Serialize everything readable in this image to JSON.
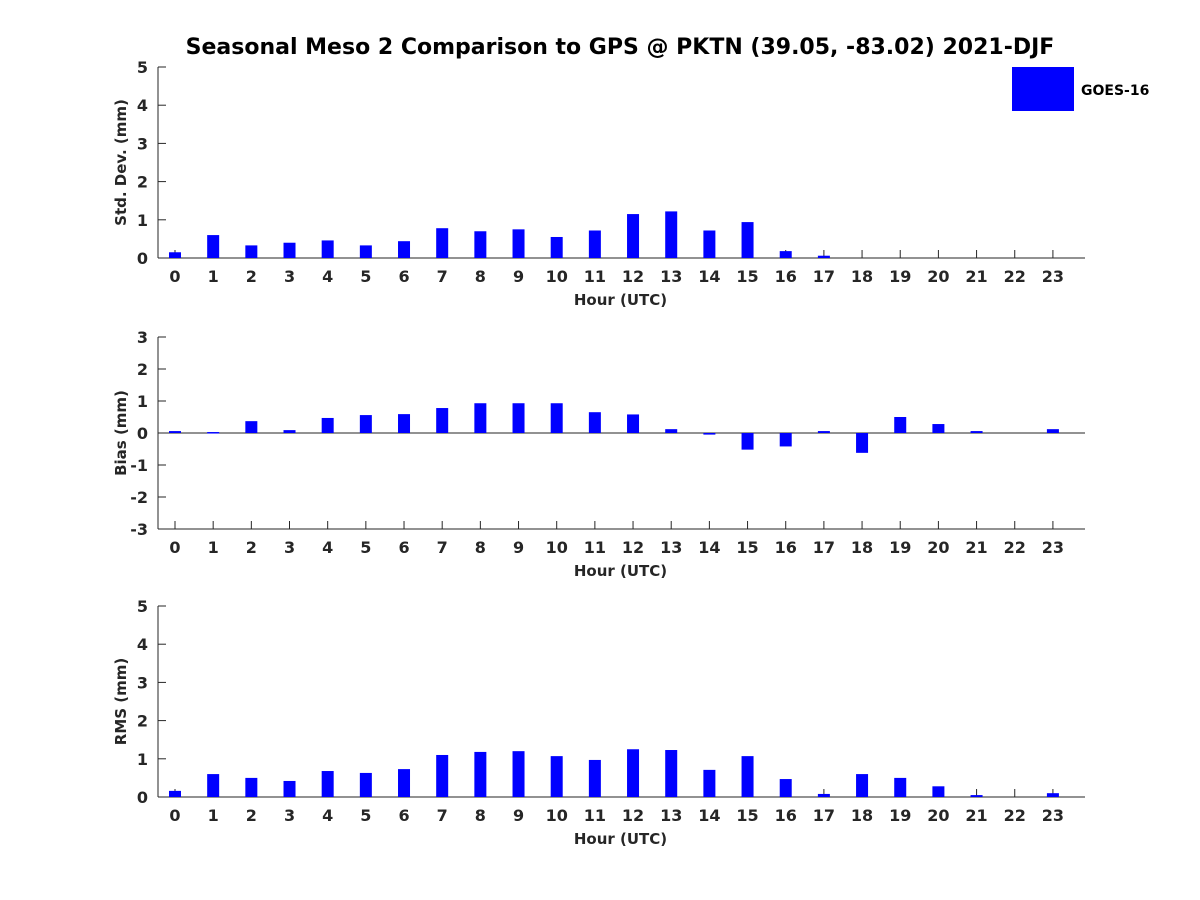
{
  "title": "Seasonal Meso 2 Comparison to GPS @ PKTN (39.05, -83.02) 2021-DJF",
  "legend": {
    "label": "GOES-16",
    "color": "#0000ff",
    "placement": "top-right"
  },
  "colors": {
    "bar": "#0000ff",
    "axis": "#262626",
    "text": "#262626",
    "errorbar": "#000000"
  },
  "chart_data": [
    {
      "type": "bar",
      "panel": "std-dev",
      "xlabel": "Hour (UTC)",
      "ylabel": "Std. Dev. (mm)",
      "ylim": [
        0,
        5
      ],
      "yticks": [
        0,
        1,
        2,
        3,
        4,
        5
      ],
      "categories": [
        "0",
        "1",
        "2",
        "3",
        "4",
        "5",
        "6",
        "7",
        "8",
        "9",
        "10",
        "11",
        "12",
        "13",
        "14",
        "15",
        "16",
        "17",
        "18",
        "19",
        "20",
        "21",
        "22",
        "23"
      ],
      "series": [
        {
          "name": "GOES-16",
          "values": [
            0.15,
            0.6,
            0.33,
            0.4,
            0.46,
            0.33,
            0.44,
            0.78,
            0.7,
            0.75,
            0.55,
            0.72,
            1.15,
            1.22,
            0.72,
            0.94,
            0.18,
            0.06,
            0,
            0,
            0,
            0,
            0,
            0
          ]
        }
      ],
      "grid": false
    },
    {
      "type": "bar",
      "panel": "bias",
      "xlabel": "Hour (UTC)",
      "ylabel": "Bias (mm)",
      "ylim": [
        -3,
        3
      ],
      "yticks": [
        -3,
        -2,
        -1,
        0,
        1,
        2,
        3
      ],
      "categories": [
        "0",
        "1",
        "2",
        "3",
        "4",
        "5",
        "6",
        "7",
        "8",
        "9",
        "10",
        "11",
        "12",
        "13",
        "14",
        "15",
        "16",
        "17",
        "18",
        "19",
        "20",
        "21",
        "22",
        "23"
      ],
      "series": [
        {
          "name": "GOES-16",
          "values": [
            0.06,
            0.03,
            0.37,
            0.09,
            0.47,
            0.56,
            0.59,
            0.78,
            0.93,
            0.93,
            0.93,
            0.65,
            0.58,
            0.12,
            -0.05,
            -0.52,
            -0.42,
            0.06,
            -0.62,
            0.5,
            0.28,
            0.06,
            0,
            0.12
          ]
        }
      ],
      "grid": false
    },
    {
      "type": "bar",
      "panel": "rms",
      "xlabel": "Hour (UTC)",
      "ylabel": "RMS (mm)",
      "ylim": [
        0,
        5
      ],
      "yticks": [
        0,
        1,
        2,
        3,
        4,
        5
      ],
      "categories": [
        "0",
        "1",
        "2",
        "3",
        "4",
        "5",
        "6",
        "7",
        "8",
        "9",
        "10",
        "11",
        "12",
        "13",
        "14",
        "15",
        "16",
        "17",
        "18",
        "19",
        "20",
        "21",
        "22",
        "23"
      ],
      "series": [
        {
          "name": "GOES-16",
          "values": [
            0.16,
            0.6,
            0.5,
            0.42,
            0.68,
            0.63,
            0.73,
            1.1,
            1.18,
            1.2,
            1.07,
            0.97,
            1.25,
            1.23,
            0.71,
            1.07,
            0.47,
            0.08,
            0.6,
            0.5,
            0.28,
            0.05,
            0,
            0.1
          ]
        }
      ],
      "grid": false
    }
  ]
}
